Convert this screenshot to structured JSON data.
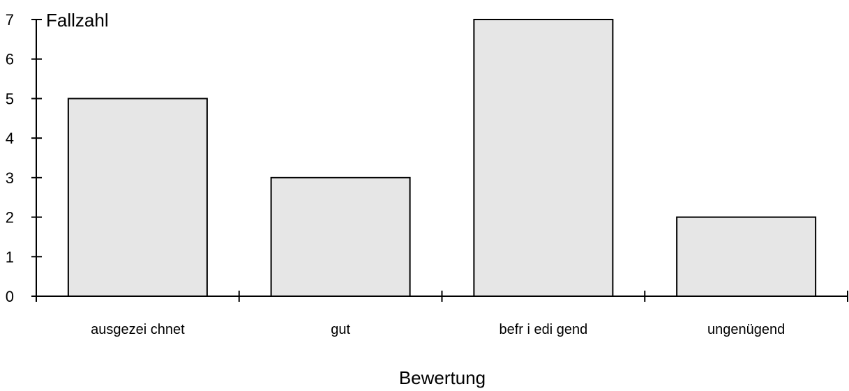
{
  "chart_data": {
    "type": "bar",
    "categories": [
      "ausgezei chnet",
      "gut",
      "befr i edi gend",
      "ungenügend"
    ],
    "values": [
      5,
      3,
      7,
      2
    ],
    "ylabel": "Fallzahl",
    "xlabel": "Bewertung",
    "ylim": [
      0,
      7
    ],
    "yticks": [
      "0",
      "1",
      "2",
      "3",
      "4",
      "5",
      "6",
      "7"
    ],
    "grid": false,
    "colors": {
      "bar_fill": "#e6e6e6",
      "bar_stroke": "#000000"
    }
  }
}
